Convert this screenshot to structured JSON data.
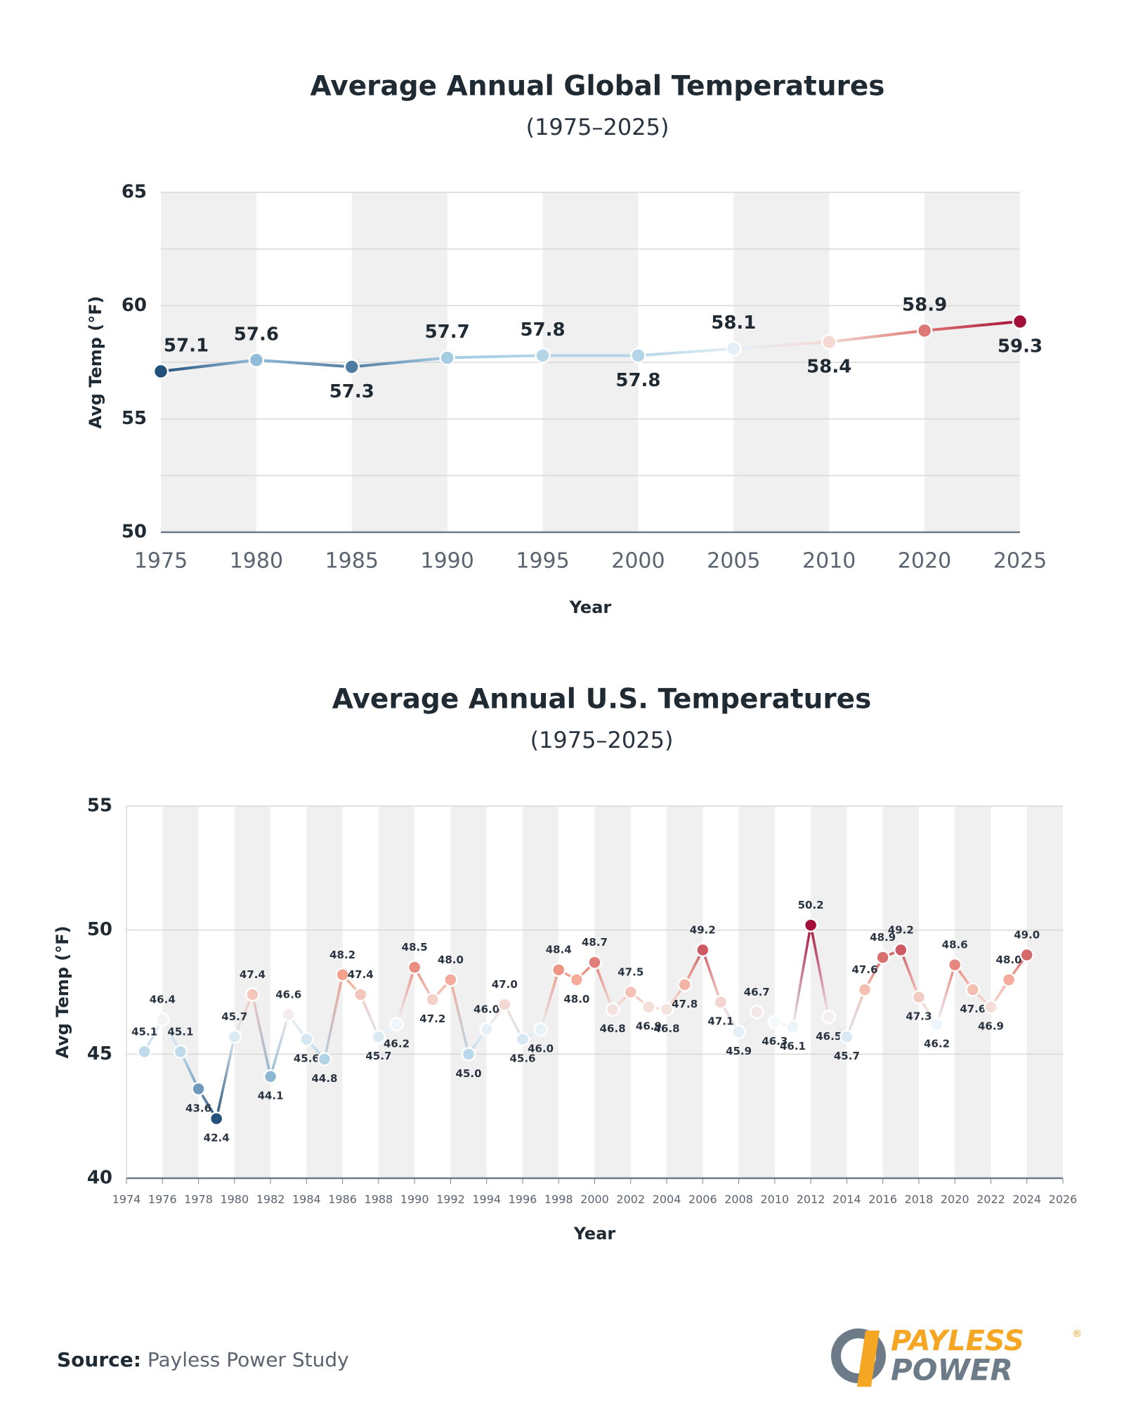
{
  "chart_data": [
    {
      "type": "line",
      "title": "Average Annual Global Temperatures",
      "subtitle": "(1975–2025)",
      "x_label": "Year",
      "y_label": "Avg Temp (°F)",
      "categories": [
        "1975",
        "1980",
        "1985",
        "1990",
        "1995",
        "2000",
        "2005",
        "2010",
        "2020",
        "2025"
      ],
      "values": [
        57.1,
        57.6,
        57.3,
        57.7,
        57.8,
        57.8,
        58.1,
        58.4,
        58.9,
        59.3
      ],
      "ylim": [
        50,
        65
      ],
      "yticks": [
        50,
        55,
        60,
        65
      ],
      "minor_yticks": [
        52.5,
        57.5,
        62.5
      ],
      "colormap": [
        "#24507c",
        "#9cc7e0",
        "#f4f9fc",
        "#f4a08c",
        "#a40f37"
      ]
    },
    {
      "type": "scatter-line",
      "title": "Average Annual U.S. Temperatures",
      "subtitle": "(1975–2025)",
      "x_label": "Year",
      "y_label": "Avg Temp (°F)",
      "x": [
        1975,
        1976,
        1977,
        1978,
        1979,
        1980,
        1981,
        1982,
        1983,
        1984,
        1985,
        1986,
        1987,
        1988,
        1989,
        1990,
        1991,
        1992,
        1993,
        1994,
        1995,
        1996,
        1997,
        1998,
        1999,
        2000,
        2001,
        2002,
        2003,
        2004,
        2005,
        2006,
        2007,
        2008,
        2009,
        2010,
        2011,
        2012,
        2013,
        2014,
        2015,
        2016,
        2017,
        2018,
        2019,
        2020,
        2021,
        2022,
        2023,
        2024
      ],
      "values": [
        45.1,
        46.4,
        45.1,
        43.6,
        42.4,
        45.7,
        47.4,
        44.1,
        46.6,
        45.6,
        44.8,
        48.2,
        47.4,
        45.7,
        46.2,
        48.5,
        47.2,
        48.0,
        45.0,
        46.0,
        47.0,
        45.6,
        46.0,
        48.4,
        48.0,
        48.7,
        46.8,
        47.5,
        46.9,
        46.8,
        47.8,
        49.2,
        47.1,
        45.9,
        46.7,
        46.3,
        46.1,
        50.2,
        46.5,
        45.7,
        47.6,
        48.9,
        49.2,
        47.3,
        46.2,
        48.6,
        47.6,
        46.9,
        48.0,
        49.0
      ],
      "value_labels": [
        "45.1",
        "46.4",
        "45.1",
        "43.6",
        "42.4",
        "45.7",
        "47.4",
        "44.1",
        "46.6",
        "45.6",
        "44.8",
        "48.2",
        "47.4",
        "45.7",
        "46.2",
        "48.5",
        "47.2",
        "48.0",
        "45.0",
        "46.0",
        "47.0",
        "45.6",
        "46.0",
        "48.4",
        "48.0",
        "48.7",
        "46.8",
        "47.5",
        "46.9",
        "46.8",
        "47.8",
        "49.2",
        "47.1",
        "45.9",
        "46.7",
        "46.3",
        "46.1",
        "50.2",
        "46.5",
        "45.7",
        "47.6",
        "48.9",
        "49.2",
        "47.3",
        "46.2",
        "48.6",
        "47.6",
        "46.9",
        "48.0",
        "49.0"
      ],
      "xlim": [
        1974,
        2026
      ],
      "xticks": [
        1974,
        1976,
        1978,
        1980,
        1982,
        1984,
        1986,
        1988,
        1990,
        1992,
        1994,
        1996,
        1998,
        2000,
        2002,
        2004,
        2006,
        2008,
        2010,
        2012,
        2014,
        2016,
        2018,
        2020,
        2022,
        2024,
        2026
      ],
      "ylim": [
        40,
        55
      ],
      "yticks": [
        40,
        45,
        50,
        55
      ],
      "colormap": [
        "#24507c",
        "#9cc7e0",
        "#f4f9fc",
        "#f4a08c",
        "#a40f37"
      ]
    }
  ],
  "source": {
    "label": "Source:",
    "text": "Payless Power Study"
  },
  "logo": {
    "line1": "PAYLESS",
    "line2": "POWER",
    "mark": "®"
  }
}
